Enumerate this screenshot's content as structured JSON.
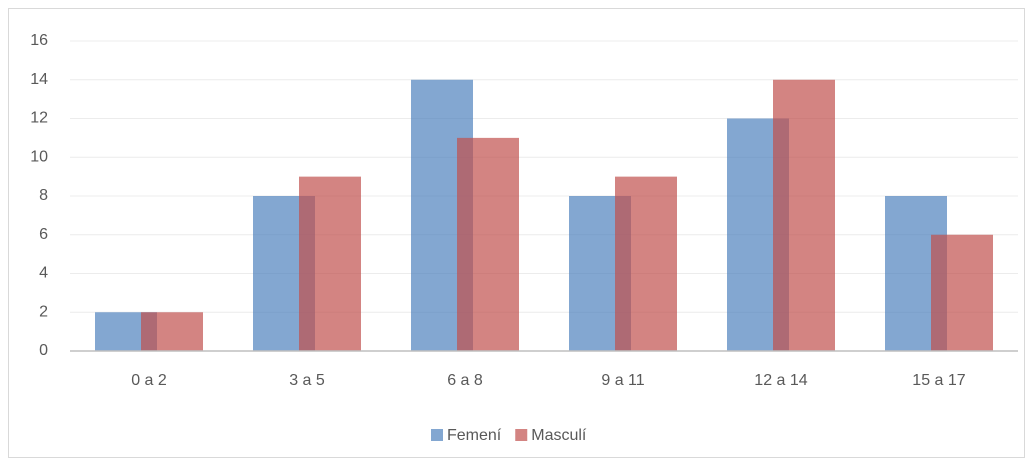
{
  "chart_data": {
    "type": "bar",
    "categories": [
      "0 a 2",
      "3 a 5",
      "6 a 8",
      "9 a 11",
      "12 a 14",
      "15 a 17"
    ],
    "series": [
      {
        "name": "Femení",
        "color": "#4f81bd",
        "values": [
          2,
          8,
          14,
          8,
          12,
          8
        ]
      },
      {
        "name": "Masculí",
        "color": "#c0504d",
        "values": [
          2,
          9,
          11,
          9,
          14,
          6
        ]
      }
    ],
    "ylim": [
      0,
      16
    ],
    "yticks": [
      0,
      2,
      4,
      6,
      8,
      10,
      12,
      14,
      16
    ],
    "grid": true,
    "legend": "bottom"
  }
}
